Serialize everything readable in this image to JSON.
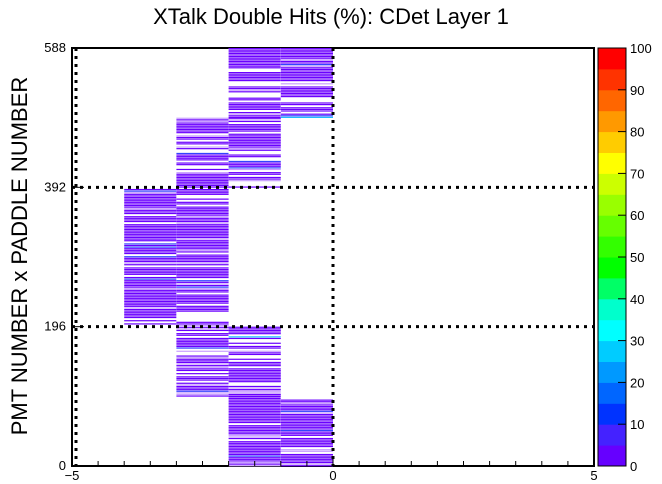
{
  "chart_data": {
    "type": "heatmap",
    "title": "XTalk Double Hits (%): CDet Layer 1",
    "ylabel": "PMT NUMBER x PADDLE NUMBER",
    "xlabel": "",
    "xlim": [
      -5,
      5
    ],
    "ylim": [
      0,
      588
    ],
    "x_ticks": [
      "−5",
      "0",
      "5"
    ],
    "y_ticks": [
      "0",
      "196",
      "392",
      "588"
    ],
    "z_range": [
      0,
      100
    ],
    "z_ticks": [
      "0",
      "10",
      "20",
      "30",
      "40",
      "50",
      "60",
      "70",
      "80",
      "90",
      "100"
    ],
    "palette": [
      "#6600ff",
      "#4422ff",
      "#0033ff",
      "#0066ff",
      "#0099ff",
      "#00ccff",
      "#00ffff",
      "#00ffcc",
      "#00ff66",
      "#00ff00",
      "#33ff00",
      "#66ff00",
      "#99ff00",
      "#ccff00",
      "#ffff00",
      "#ffcc00",
      "#ff9900",
      "#ff6600",
      "#ff3300",
      "#ff0000"
    ],
    "filled_regions": [
      {
        "x": [
          -4,
          -3
        ],
        "y": [
          196,
          392
        ],
        "level": "low"
      },
      {
        "x": [
          -3,
          -2
        ],
        "y": [
          98,
          196
        ],
        "level": "low"
      },
      {
        "x": [
          -3,
          -2
        ],
        "y": [
          196,
          392
        ],
        "level": "low"
      },
      {
        "x": [
          -3,
          -2
        ],
        "y": [
          392,
          490
        ],
        "level": "low"
      },
      {
        "x": [
          -2,
          -1
        ],
        "y": [
          0,
          98
        ],
        "level": "low"
      },
      {
        "x": [
          -2,
          -1
        ],
        "y": [
          98,
          196
        ],
        "level": "low"
      },
      {
        "x": [
          -2,
          -1
        ],
        "y": [
          392,
          490
        ],
        "level": "low"
      },
      {
        "x": [
          -2,
          -1
        ],
        "y": [
          490,
          588
        ],
        "level": "low"
      },
      {
        "x": [
          -1,
          0
        ],
        "y": [
          0,
          98
        ],
        "level": "low"
      },
      {
        "x": [
          -1,
          0
        ],
        "y": [
          490,
          588
        ],
        "level": "low"
      }
    ],
    "reference_lines": {
      "x": [
        0
      ],
      "y": [
        196,
        392
      ]
    }
  }
}
